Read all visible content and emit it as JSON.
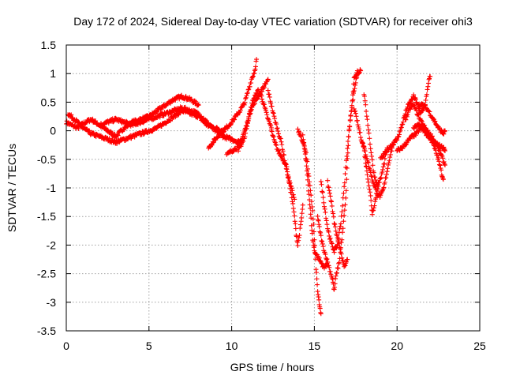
{
  "chart_data": {
    "type": "scatter",
    "title": "Day 172 of 2024, Sidereal Day-to-day VTEC variation (SDTVAR) for receiver ohi3",
    "xlabel": "GPS time / hours",
    "ylabel": "SDTVAR / TECUs",
    "xlim": [
      0,
      25
    ],
    "ylim": [
      -3.5,
      1.5
    ],
    "xticks": [
      0,
      5,
      10,
      15,
      20,
      25
    ],
    "xtick_labels": [
      "0",
      "5",
      "10",
      "15",
      "20",
      "25"
    ],
    "yticks": [
      -3.5,
      -3,
      -2.5,
      -2,
      -1.5,
      -1,
      -0.5,
      0,
      0.5,
      1,
      1.5
    ],
    "ytick_labels": [
      "-3.5",
      "-3",
      "-2.5",
      "-2",
      "-1.5",
      "-1",
      "-0.5",
      "0",
      "0.5",
      "1",
      "1.5"
    ],
    "grid": true,
    "marker": "+",
    "series": [
      {
        "name": "satellite-tracks",
        "color": "#ff0000",
        "tracks": [
          [
            [
              0.0,
              0.15
            ],
            [
              0.3,
              0.1
            ],
            [
              0.7,
              0.05
            ],
            [
              1.0,
              0.12
            ],
            [
              1.5,
              0.2
            ],
            [
              2.0,
              0.1
            ],
            [
              2.5,
              0.0
            ],
            [
              3.0,
              -0.1
            ],
            [
              3.5,
              0.05
            ],
            [
              4.0,
              0.15
            ],
            [
              4.5,
              0.2
            ],
            [
              5.0,
              0.25
            ],
            [
              5.5,
              0.35
            ],
            [
              6.0,
              0.45
            ],
            [
              6.5,
              0.55
            ],
            [
              7.0,
              0.6
            ],
            [
              7.5,
              0.55
            ],
            [
              8.0,
              0.45
            ]
          ],
          [
            [
              0.1,
              0.3
            ],
            [
              0.5,
              0.2
            ],
            [
              1.0,
              0.05
            ],
            [
              1.5,
              -0.05
            ],
            [
              2.0,
              -0.1
            ],
            [
              2.5,
              -0.15
            ],
            [
              3.0,
              -0.2
            ],
            [
              3.5,
              -0.15
            ],
            [
              4.0,
              -0.1
            ],
            [
              4.5,
              -0.05
            ],
            [
              5.0,
              0.0
            ],
            [
              5.5,
              0.05
            ],
            [
              6.0,
              0.15
            ],
            [
              6.5,
              0.25
            ],
            [
              7.0,
              0.35
            ],
            [
              7.5,
              0.3
            ],
            [
              8.0,
              0.25
            ],
            [
              8.5,
              0.1
            ],
            [
              9.0,
              0.05
            ],
            [
              9.5,
              0.0
            ]
          ],
          [
            [
              2.0,
              0.1
            ],
            [
              2.5,
              0.15
            ],
            [
              3.0,
              0.2
            ],
            [
              3.5,
              0.15
            ],
            [
              4.0,
              0.1
            ],
            [
              4.5,
              0.15
            ],
            [
              5.0,
              0.2
            ],
            [
              5.5,
              0.25
            ],
            [
              6.0,
              0.3
            ],
            [
              6.5,
              0.35
            ],
            [
              7.0,
              0.4
            ],
            [
              7.5,
              0.35
            ],
            [
              8.0,
              0.3
            ],
            [
              8.5,
              0.15
            ],
            [
              9.0,
              0.0
            ],
            [
              9.5,
              -0.1
            ],
            [
              10.0,
              -0.15
            ],
            [
              10.5,
              -0.2
            ]
          ],
          [
            [
              8.6,
              -0.3
            ],
            [
              9.0,
              -0.15
            ],
            [
              9.5,
              0.0
            ],
            [
              10.0,
              0.15
            ],
            [
              10.5,
              0.35
            ],
            [
              10.8,
              0.5
            ],
            [
              11.0,
              0.7
            ],
            [
              11.2,
              0.9
            ],
            [
              11.4,
              1.05
            ],
            [
              11.5,
              1.25
            ]
          ],
          [
            [
              9.7,
              -0.42
            ],
            [
              10.0,
              -0.35
            ],
            [
              10.3,
              -0.3
            ],
            [
              10.6,
              -0.15
            ],
            [
              10.9,
              0.1
            ],
            [
              11.2,
              0.4
            ],
            [
              11.5,
              0.55
            ],
            [
              11.8,
              0.7
            ],
            [
              12.0,
              0.8
            ],
            [
              12.2,
              0.9
            ]
          ],
          [
            [
              10.4,
              -0.35
            ],
            [
              10.8,
              -0.1
            ],
            [
              11.0,
              0.2
            ],
            [
              11.3,
              0.55
            ],
            [
              11.6,
              0.7
            ],
            [
              11.8,
              0.6
            ],
            [
              12.0,
              0.4
            ],
            [
              12.2,
              0.2
            ],
            [
              12.4,
              0.05
            ]
          ],
          [
            [
              12.2,
              0.7
            ],
            [
              12.4,
              0.45
            ],
            [
              12.6,
              0.2
            ],
            [
              12.8,
              0.0
            ],
            [
              13.0,
              -0.2
            ],
            [
              13.2,
              -0.5
            ],
            [
              13.4,
              -0.8
            ],
            [
              13.6,
              -1.1
            ],
            [
              13.8,
              -1.5
            ],
            [
              13.9,
              -1.8
            ],
            [
              14.0,
              -2.0
            ],
            [
              14.2,
              -1.6
            ],
            [
              14.3,
              -1.3
            ]
          ],
          [
            [
              12.4,
              0.0
            ],
            [
              12.6,
              -0.2
            ],
            [
              12.8,
              -0.35
            ],
            [
              13.0,
              -0.45
            ],
            [
              13.3,
              -0.6
            ],
            [
              13.5,
              -0.9
            ],
            [
              13.8,
              -1.2
            ]
          ],
          [
            [
              14.0,
              0.0
            ],
            [
              14.2,
              -0.1
            ],
            [
              14.4,
              -0.3
            ],
            [
              14.5,
              -0.55
            ],
            [
              14.6,
              -0.85
            ],
            [
              14.7,
              -1.2
            ],
            [
              14.8,
              -1.55
            ],
            [
              14.9,
              -1.9
            ],
            [
              15.0,
              -2.1
            ],
            [
              15.2,
              -2.2
            ],
            [
              15.4,
              -2.3
            ],
            [
              15.6,
              -2.4
            ],
            [
              15.8,
              -2.3
            ]
          ],
          [
            [
              14.3,
              -0.1
            ],
            [
              14.5,
              -0.4
            ],
            [
              14.7,
              -0.9
            ],
            [
              14.9,
              -1.4
            ],
            [
              15.0,
              -1.9
            ],
            [
              15.1,
              -2.4
            ],
            [
              15.2,
              -2.8
            ],
            [
              15.3,
              -3.05
            ],
            [
              15.4,
              -3.2
            ]
          ],
          [
            [
              15.2,
              -1.5
            ],
            [
              15.3,
              -1.7
            ],
            [
              15.5,
              -2.0
            ],
            [
              15.7,
              -2.2
            ],
            [
              15.9,
              -2.4
            ],
            [
              16.1,
              -2.6
            ],
            [
              16.2,
              -2.8
            ],
            [
              16.3,
              -2.55
            ],
            [
              16.5,
              -2.3
            ],
            [
              16.7,
              -1.8
            ],
            [
              16.9,
              -1.2
            ],
            [
              17.0,
              -0.5
            ],
            [
              17.1,
              0.0
            ],
            [
              17.3,
              0.5
            ],
            [
              17.4,
              0.9
            ],
            [
              17.6,
              1.05
            ]
          ],
          [
            [
              15.4,
              -0.9
            ],
            [
              15.6,
              -1.3
            ],
            [
              15.8,
              -1.7
            ],
            [
              16.0,
              -1.95
            ],
            [
              16.2,
              -2.1
            ],
            [
              16.4,
              -2.0
            ],
            [
              16.6,
              -1.6
            ],
            [
              16.8,
              -1.0
            ],
            [
              17.0,
              -0.3
            ],
            [
              17.2,
              0.3
            ],
            [
              17.4,
              0.7
            ],
            [
              17.6,
              1.0
            ],
            [
              17.8,
              1.05
            ]
          ],
          [
            [
              15.8,
              -0.9
            ],
            [
              16.0,
              -1.2
            ],
            [
              16.2,
              -1.6
            ],
            [
              16.4,
              -1.9
            ],
            [
              16.6,
              -2.1
            ],
            [
              16.8,
              -2.4
            ],
            [
              17.0,
              -2.25
            ]
          ],
          [
            [
              17.4,
              0.4
            ],
            [
              17.8,
              -0.1
            ],
            [
              18.0,
              -0.3
            ],
            [
              18.1,
              -0.55
            ],
            [
              18.2,
              -0.75
            ],
            [
              18.4,
              -1.15
            ],
            [
              18.5,
              -1.45
            ],
            [
              18.7,
              -1.2
            ],
            [
              18.9,
              -0.9
            ]
          ],
          [
            [
              17.9,
              -0.2
            ],
            [
              18.2,
              -0.5
            ],
            [
              18.5,
              -0.85
            ],
            [
              18.8,
              -1.1
            ],
            [
              19.0,
              -1.15
            ],
            [
              19.2,
              -1.0
            ],
            [
              19.4,
              -0.7
            ],
            [
              19.6,
              -0.4
            ],
            [
              19.8,
              -0.2
            ]
          ],
          [
            [
              18.0,
              0.65
            ],
            [
              18.2,
              0.2
            ],
            [
              18.4,
              -0.3
            ],
            [
              18.6,
              -0.75
            ],
            [
              18.8,
              -0.95
            ],
            [
              19.0,
              -0.85
            ],
            [
              19.2,
              -0.6
            ],
            [
              19.4,
              -0.3
            ]
          ],
          [
            [
              19.0,
              -0.5
            ],
            [
              19.5,
              -0.3
            ],
            [
              20.0,
              -0.15
            ],
            [
              20.2,
              0.0
            ],
            [
              20.4,
              0.2
            ],
            [
              20.6,
              0.4
            ],
            [
              20.8,
              0.5
            ],
            [
              21.0,
              0.6
            ],
            [
              21.2,
              0.5
            ],
            [
              21.4,
              0.3
            ],
            [
              21.7,
              0.45
            ],
            [
              21.9,
              0.85
            ],
            [
              22.0,
              0.95
            ]
          ],
          [
            [
              20.0,
              -0.35
            ],
            [
              20.3,
              -0.3
            ],
            [
              20.6,
              -0.2
            ],
            [
              20.9,
              -0.1
            ],
            [
              21.2,
              -0.05
            ],
            [
              21.5,
              0.1
            ],
            [
              21.8,
              0.0
            ],
            [
              22.1,
              -0.1
            ],
            [
              22.4,
              -0.25
            ],
            [
              22.7,
              -0.45
            ],
            [
              22.9,
              -0.6
            ]
          ],
          [
            [
              20.5,
              0.2
            ],
            [
              20.8,
              0.4
            ],
            [
              21.0,
              0.45
            ],
            [
              21.3,
              0.25
            ],
            [
              21.6,
              0.1
            ],
            [
              21.9,
              -0.05
            ],
            [
              22.2,
              -0.25
            ],
            [
              22.5,
              -0.5
            ],
            [
              22.7,
              -0.75
            ],
            [
              22.8,
              -0.85
            ]
          ],
          [
            [
              21.3,
              0.45
            ],
            [
              21.6,
              0.45
            ],
            [
              21.9,
              0.35
            ],
            [
              22.2,
              0.2
            ],
            [
              22.5,
              0.05
            ],
            [
              22.8,
              -0.05
            ],
            [
              22.9,
              0.0
            ]
          ],
          [
            [
              21.0,
              0.05
            ],
            [
              21.3,
              0.1
            ],
            [
              21.6,
              0.0
            ],
            [
              21.9,
              -0.1
            ],
            [
              22.2,
              -0.2
            ],
            [
              22.5,
              -0.25
            ],
            [
              22.8,
              -0.3
            ],
            [
              22.9,
              -0.35
            ]
          ]
        ]
      }
    ]
  }
}
